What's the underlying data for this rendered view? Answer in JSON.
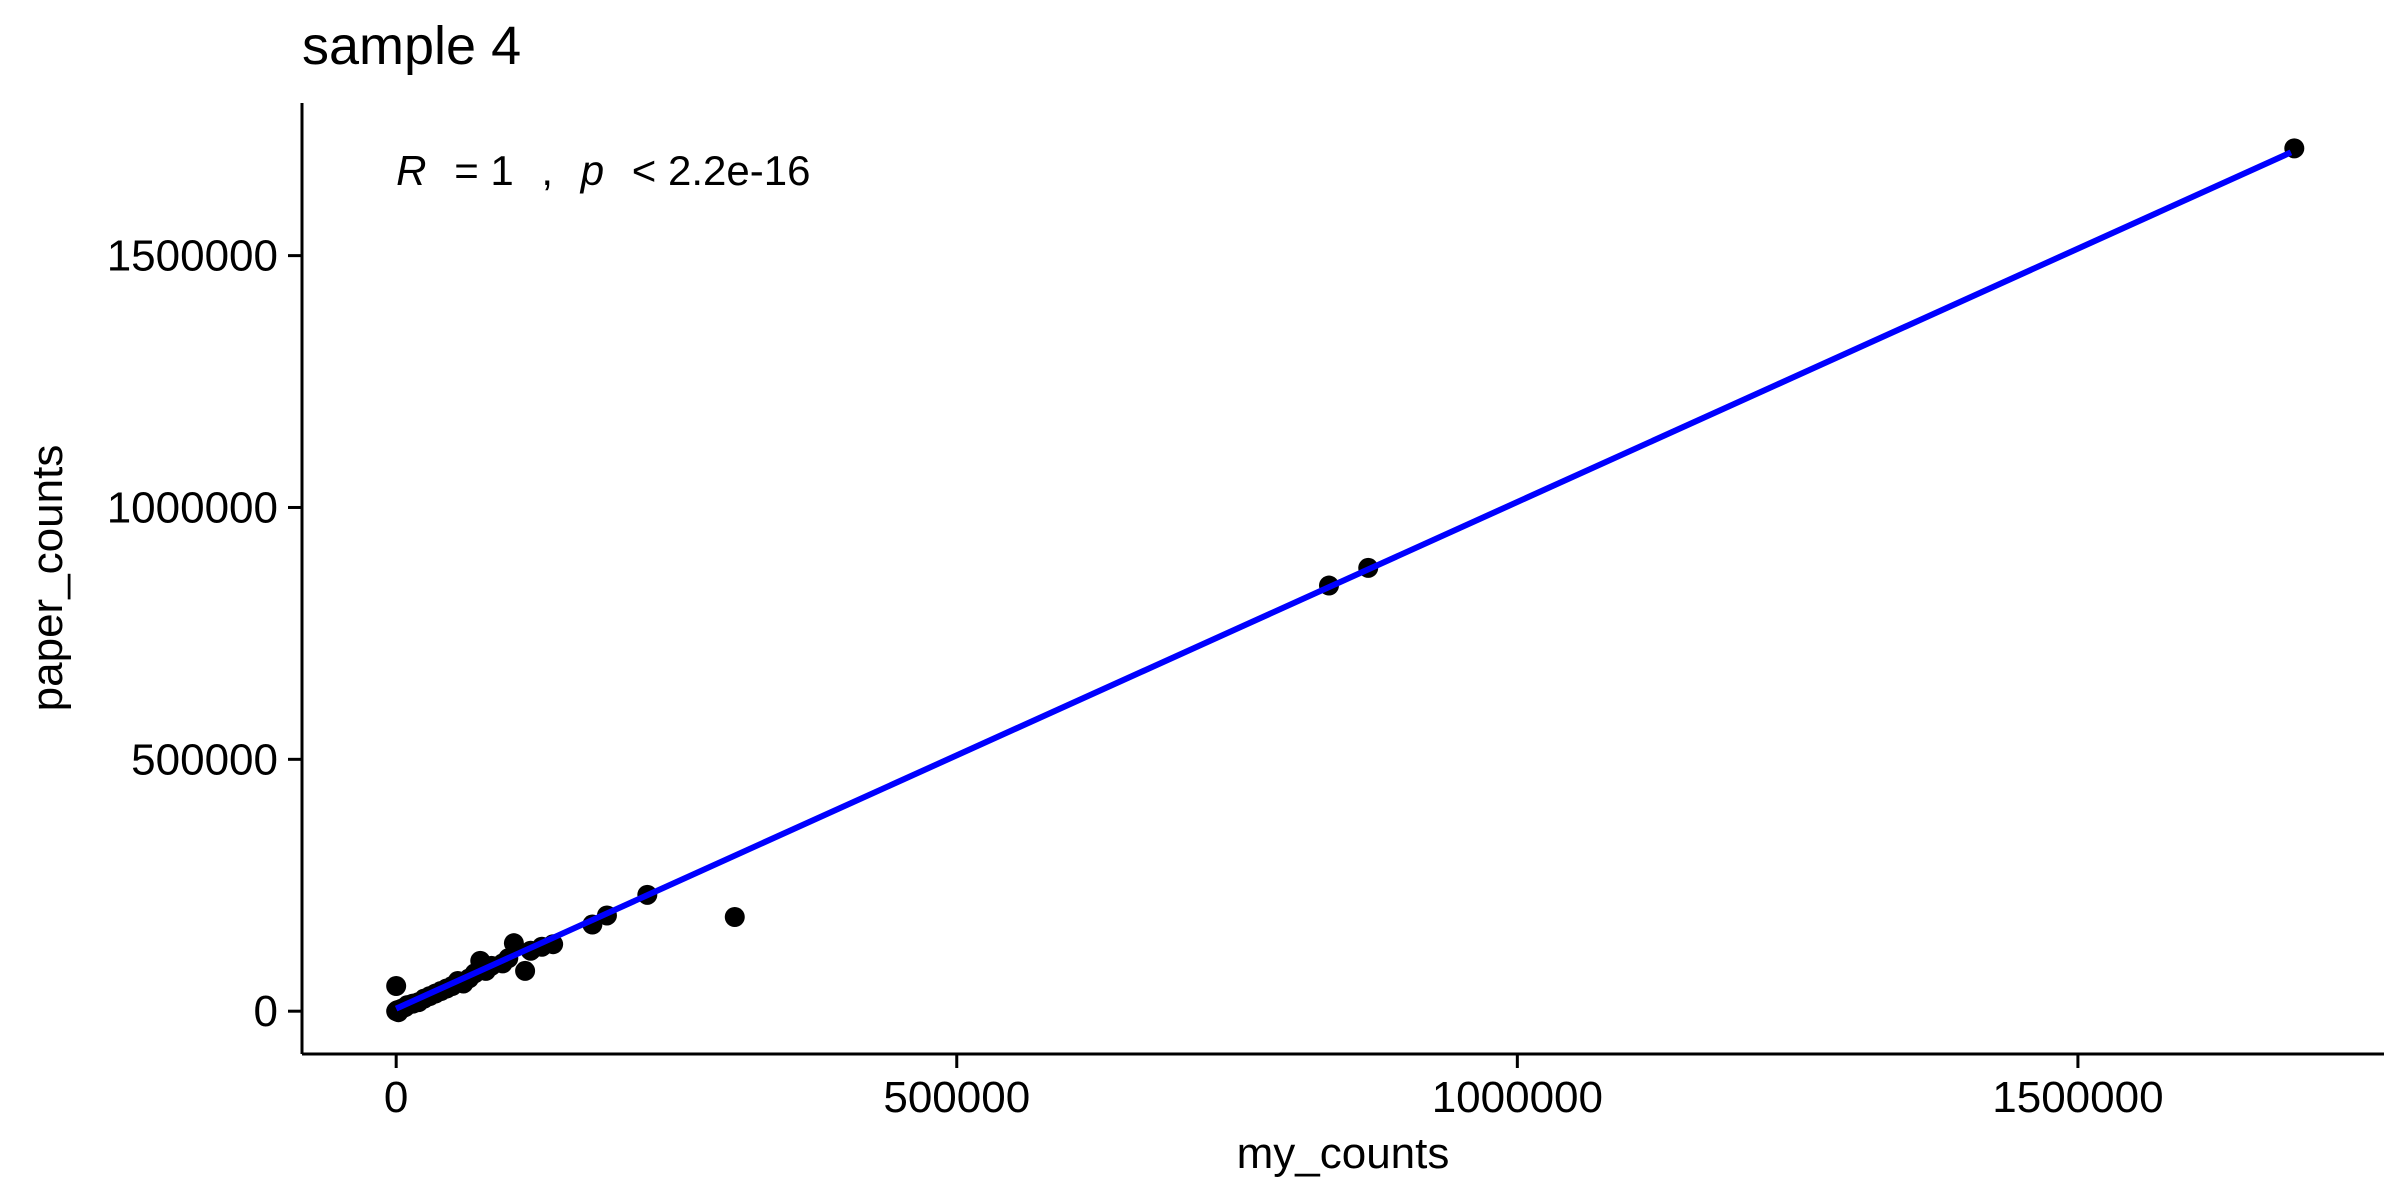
{
  "chart_data": {
    "type": "scatter",
    "title": "sample 4",
    "xlabel": "my_counts",
    "ylabel": "paper_counts",
    "xlim": [
      -84000,
      1773000
    ],
    "ylim": [
      -85000,
      1803000
    ],
    "xticks": [
      0,
      500000,
      1000000,
      1500000
    ],
    "xtick_labels": [
      "0",
      "500000",
      "1000000",
      "1500000"
    ],
    "yticks": [
      0,
      500000,
      1000000,
      1500000
    ],
    "ytick_labels": [
      "0",
      "500000",
      "1000000",
      "1500000"
    ],
    "grid": false,
    "legend": "none",
    "annotation": {
      "r_symbol": "R",
      "r_value": "= 1",
      "separator": ",",
      "p_symbol": "p",
      "p_value": "< 2.2e-16",
      "x": 0,
      "y": 1640000
    },
    "regression_line": {
      "color": "#0000FF",
      "x": [
        0,
        1690000
      ],
      "y": [
        5000,
        1705000
      ]
    },
    "points_color": "#000000",
    "points": [
      {
        "x": 0,
        "y": 0
      },
      {
        "x": 1000,
        "y": 2000
      },
      {
        "x": 2000,
        "y": -2000
      },
      {
        "x": 0,
        "y": 50000
      },
      {
        "x": 5000,
        "y": 5000
      },
      {
        "x": 8000,
        "y": 8000
      },
      {
        "x": 10000,
        "y": 12000
      },
      {
        "x": 15000,
        "y": 15000
      },
      {
        "x": 20000,
        "y": 18000
      },
      {
        "x": 25000,
        "y": 25000
      },
      {
        "x": 30000,
        "y": 30000
      },
      {
        "x": 35000,
        "y": 35000
      },
      {
        "x": 40000,
        "y": 40000
      },
      {
        "x": 45000,
        "y": 45000
      },
      {
        "x": 50000,
        "y": 50000
      },
      {
        "x": 55000,
        "y": 60000
      },
      {
        "x": 60000,
        "y": 55000
      },
      {
        "x": 65000,
        "y": 65000
      },
      {
        "x": 70000,
        "y": 75000
      },
      {
        "x": 75000,
        "y": 100000
      },
      {
        "x": 80000,
        "y": 80000
      },
      {
        "x": 85000,
        "y": 90000
      },
      {
        "x": 95000,
        "y": 95000
      },
      {
        "x": 100000,
        "y": 105000
      },
      {
        "x": 105000,
        "y": 135000
      },
      {
        "x": 115000,
        "y": 80000
      },
      {
        "x": 120000,
        "y": 120000
      },
      {
        "x": 130000,
        "y": 128000
      },
      {
        "x": 140000,
        "y": 133000
      },
      {
        "x": 175000,
        "y": 172000
      },
      {
        "x": 188000,
        "y": 190000
      },
      {
        "x": 224000,
        "y": 231000
      },
      {
        "x": 302000,
        "y": 187000
      },
      {
        "x": 832000,
        "y": 845000
      },
      {
        "x": 867000,
        "y": 880000
      },
      {
        "x": 1693000,
        "y": 1713000
      }
    ]
  }
}
